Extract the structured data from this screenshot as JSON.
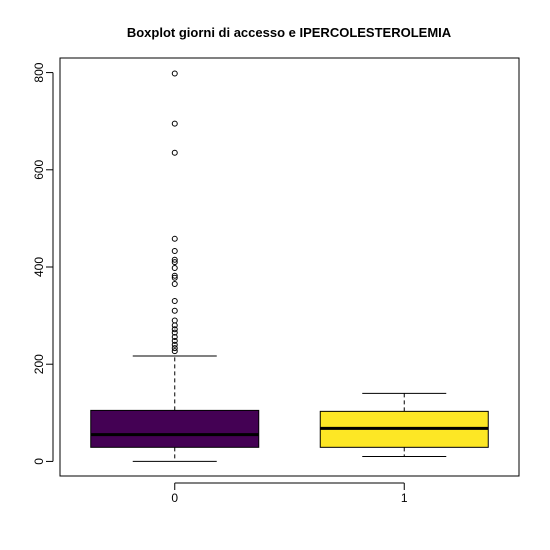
{
  "chart_data": {
    "type": "boxplot",
    "title": "Boxplot giorni di accesso e IPERCOLESTEROLEMIA",
    "xlabel": "",
    "ylabel": "",
    "ylim": [
      -30,
      830
    ],
    "y_ticks": [
      0,
      200,
      400,
      600,
      800
    ],
    "grid": false,
    "legend": "none",
    "categories": [
      "0",
      "1"
    ],
    "boxes": [
      {
        "category": "0",
        "color": "#440154",
        "whisker_low": 0,
        "q1": 29,
        "median": 55,
        "q3": 105,
        "whisker_high": 217,
        "outliers": [
          227,
          233,
          240,
          248,
          256,
          265,
          272,
          280,
          290,
          310,
          330,
          365,
          378,
          382,
          398,
          410,
          415,
          433,
          458,
          635,
          695,
          798
        ]
      },
      {
        "category": "1",
        "color": "#FDE725",
        "whisker_low": 10,
        "q1": 29,
        "median": 68,
        "q3": 103,
        "whisker_high": 140,
        "outliers": []
      }
    ]
  }
}
